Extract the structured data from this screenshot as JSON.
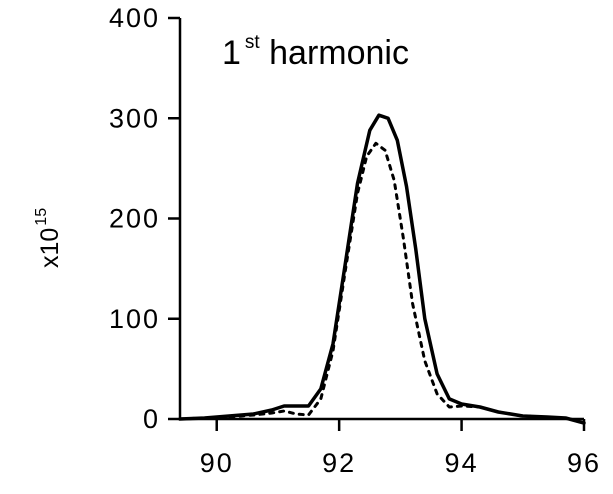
{
  "chart_data": {
    "type": "line",
    "title": {
      "base": "1",
      "superscript": "st",
      "rest": " harmonic"
    },
    "ylabel": {
      "base": "x10",
      "superscript": "15"
    },
    "xlabel": "",
    "xlim": [
      89.4,
      96
    ],
    "ylim": [
      0,
      400
    ],
    "xticks": [
      90,
      92,
      94,
      96
    ],
    "yticks": [
      0,
      100,
      200,
      300,
      400
    ],
    "legend": "none",
    "grid": false,
    "series": [
      {
        "style": "solid",
        "x": [
          89.4,
          89.8,
          90.2,
          90.6,
          90.9,
          91.1,
          91.3,
          91.5,
          91.7,
          91.9,
          92.1,
          92.3,
          92.5,
          92.65,
          92.8,
          92.95,
          93.1,
          93.25,
          93.4,
          93.6,
          93.8,
          94.0,
          94.3,
          94.6,
          95.0,
          95.4,
          95.7,
          96.0
        ],
        "y": [
          0,
          1,
          3,
          5,
          9,
          13,
          13,
          13,
          30,
          75,
          155,
          235,
          288,
          303,
          300,
          278,
          232,
          170,
          100,
          45,
          20,
          15,
          12,
          7,
          3,
          2,
          1,
          -4
        ]
      },
      {
        "style": "dotted",
        "x": [
          89.4,
          89.8,
          90.2,
          90.6,
          90.9,
          91.1,
          91.3,
          91.5,
          91.7,
          91.9,
          92.1,
          92.3,
          92.45,
          92.6,
          92.75,
          92.9,
          93.05,
          93.2,
          93.4,
          93.6,
          93.8,
          94.0,
          94.3,
          94.6,
          95.0,
          95.4,
          95.7,
          96.0
        ],
        "y": [
          0,
          1,
          2,
          4,
          6,
          8,
          5,
          4,
          20,
          68,
          148,
          225,
          262,
          275,
          268,
          238,
          180,
          115,
          58,
          25,
          12,
          13,
          12,
          7,
          3,
          2,
          1,
          -4
        ]
      }
    ]
  }
}
